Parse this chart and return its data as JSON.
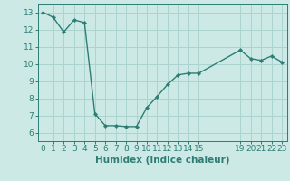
{
  "x": [
    0,
    1,
    2,
    3,
    4,
    5,
    6,
    7,
    8,
    9,
    10,
    11,
    12,
    13,
    14,
    15,
    19,
    20,
    21,
    22,
    23
  ],
  "y": [
    13.0,
    12.7,
    11.85,
    12.55,
    12.4,
    7.1,
    6.4,
    6.4,
    6.35,
    6.35,
    7.45,
    8.1,
    8.8,
    9.35,
    9.45,
    9.45,
    10.8,
    10.3,
    10.2,
    10.45,
    10.1
  ],
  "line_color": "#2d7d74",
  "marker": "D",
  "marker_size": 2.2,
  "background_color": "#cce9e6",
  "grid_color": "#aad4d0",
  "xlabel": "Humidex (Indice chaleur)",
  "xlim": [
    -0.5,
    23.5
  ],
  "ylim": [
    5.5,
    13.5
  ],
  "xticks": [
    0,
    1,
    2,
    3,
    4,
    5,
    6,
    7,
    8,
    9,
    10,
    11,
    12,
    13,
    14,
    15,
    19,
    20,
    21,
    22,
    23
  ],
  "yticks": [
    6,
    7,
    8,
    9,
    10,
    11,
    12,
    13
  ],
  "tick_label_color": "#2d7d74",
  "font_size": 6.5,
  "xlabel_fontsize": 7.5,
  "linewidth": 1.0
}
